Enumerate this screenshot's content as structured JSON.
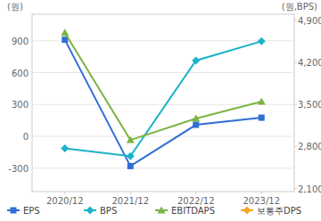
{
  "chart_data": {
    "type": "line",
    "categories": [
      "2020/12",
      "2021/12",
      "2022/12",
      "2023/12"
    ],
    "y_label": "(원)",
    "y2_label": "(원,BPS)",
    "ylim": [
      -520,
      1150
    ],
    "yticks": [
      -300,
      0,
      300,
      600,
      900
    ],
    "y2lim": [
      2050,
      5000
    ],
    "y2ticks": [
      {
        "value": 2100,
        "label": "2,100"
      },
      {
        "value": 2800,
        "label": "2,800"
      },
      {
        "value": 3500,
        "label": "3,500"
      },
      {
        "value": 4200,
        "label": "4,200"
      },
      {
        "value": 4900,
        "label": "4,900"
      }
    ],
    "grid": true,
    "legend": "bottom",
    "series": [
      {
        "name": "EPS",
        "color": "#2f6fd6",
        "marker": "square",
        "values": [
          910,
          -280,
          109,
          176
        ]
      },
      {
        "name": "BPS",
        "color": "#19b3c9",
        "marker": "diamond",
        "axis": "y2",
        "values": [
          2770,
          2640,
          4230,
          4550
        ]
      },
      {
        "name": "EBITDAPS",
        "color": "#7cb342",
        "marker": "triangle",
        "values": [
          975,
          -34,
          168,
          327
        ]
      },
      {
        "name": "보통주DPS",
        "color": "#f5a623",
        "marker": "diamond",
        "values": [
          null,
          null,
          null,
          null
        ]
      }
    ]
  }
}
